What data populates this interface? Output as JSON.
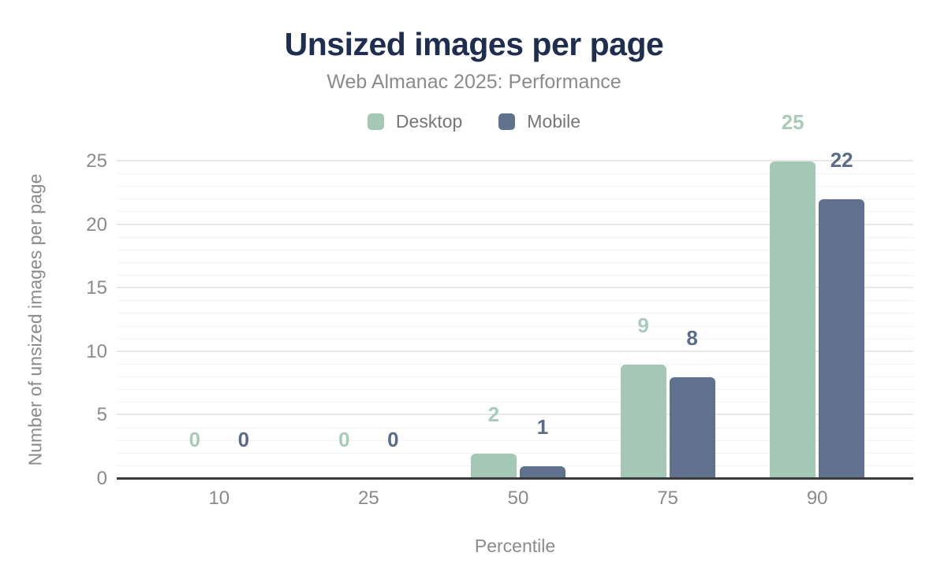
{
  "chart_data": {
    "type": "bar",
    "title": "Unsized images per page",
    "subtitle": "Web Almanac 2025: Performance",
    "xlabel": "Percentile",
    "ylabel": "Number of unsized images per page",
    "categories": [
      "10",
      "25",
      "50",
      "75",
      "90"
    ],
    "series": [
      {
        "name": "Desktop",
        "color": "#a4c8b5",
        "label_color": "#a7ccb9",
        "values": [
          0,
          0,
          2,
          9,
          25
        ]
      },
      {
        "name": "Mobile",
        "color": "#60718d",
        "label_color": "#5b6c8a",
        "values": [
          0,
          0,
          1,
          8,
          22
        ]
      }
    ],
    "ylim": [
      0,
      25
    ],
    "yticks": [
      0,
      5,
      10,
      15,
      20,
      25
    ],
    "minor_grid_step": 1,
    "major_grid_step": 5,
    "grid": true,
    "legend_position": "top"
  },
  "colors": {
    "background": "#ffffff",
    "title": "#1f2d50",
    "subtitle": "#8b8b8b",
    "axis_text": "#8a8a8a",
    "axis_line": "#3b3b3d",
    "grid_minor": "#f3f3f3",
    "grid_major": "#e8e8e8"
  }
}
